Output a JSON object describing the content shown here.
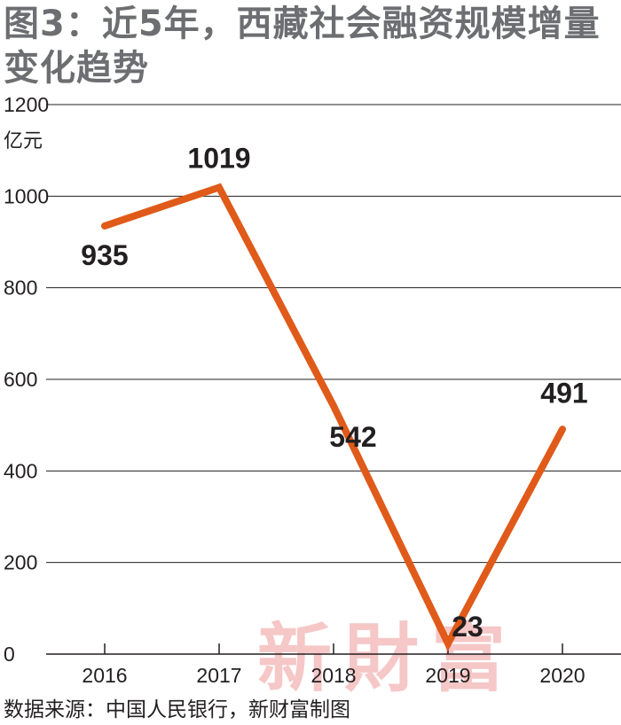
{
  "title": "图3：近5年，西藏社会融资规模增量变化趋势",
  "source": "数据来源：中国人民银行，新财富制图",
  "watermark": "新財富",
  "colors": {
    "line": "#e05a1a",
    "grid": "#231f20",
    "title": "#6d6e71",
    "watermark": "#f6c7c7"
  },
  "chart_data": {
    "type": "line",
    "title": "图3：近5年，西藏社会融资规模增量变化趋势",
    "ylabel": "亿元",
    "xlabel": "",
    "ylim": [
      0,
      1200
    ],
    "yticks": [
      0,
      200,
      400,
      600,
      800,
      1000,
      1200
    ],
    "categories": [
      "2016",
      "2017",
      "2018",
      "2019",
      "2020"
    ],
    "series": [
      {
        "values": [
          935,
          1019,
          542,
          23,
          491
        ]
      }
    ],
    "data_labels": [
      "935",
      "1019",
      "542",
      "23",
      "491"
    ],
    "grid": "horizontal",
    "legend": "none"
  }
}
